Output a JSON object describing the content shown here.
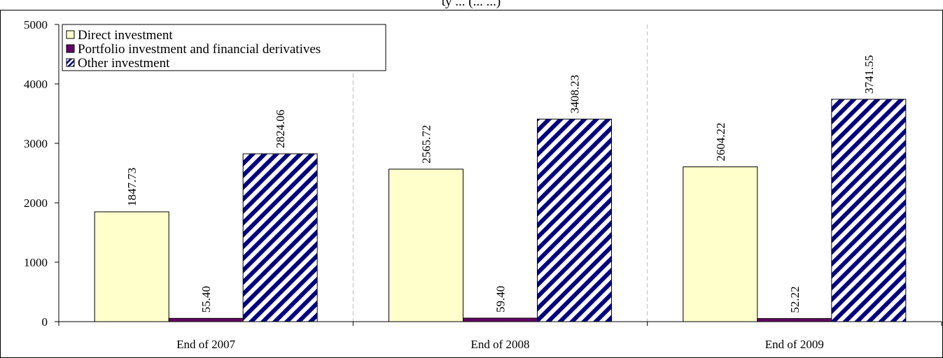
{
  "chart_data": {
    "type": "bar",
    "title": "",
    "title_visible_fragment": "ty ... (... ...)",
    "xlabel": "",
    "ylabel": "",
    "categories": [
      "End of 2007",
      "End of 2008",
      "End of 2009"
    ],
    "series": [
      {
        "name": "Direct investment",
        "values": [
          1847.73,
          2565.72,
          2604.22
        ],
        "labels": [
          "1847.73",
          "2565.72",
          "2604.22"
        ],
        "fill": "#ffffcc",
        "pattern": "solid"
      },
      {
        "name": "Portfolio investment and financial derivatives",
        "values": [
          55.4,
          59.4,
          52.22
        ],
        "labels": [
          "55.40",
          "59.40",
          "52.22"
        ],
        "fill": "#660066",
        "pattern": "solid"
      },
      {
        "name": "Other investment",
        "values": [
          2824.06,
          3408.23,
          3741.55
        ],
        "labels": [
          "2824.06",
          "3408.23",
          "3741.55"
        ],
        "fill": "#000080",
        "pattern": "diagonal-stripes"
      }
    ],
    "ylim": [
      0,
      5000
    ],
    "yticks": [
      "0",
      "1000",
      "2000",
      "3000",
      "4000",
      "5000"
    ],
    "grid": "vertical dashed separators between categories",
    "legend_position": "top-left",
    "colors": {
      "axis": "#000000",
      "border": "#000000",
      "separator": "#bbbbbb"
    }
  }
}
